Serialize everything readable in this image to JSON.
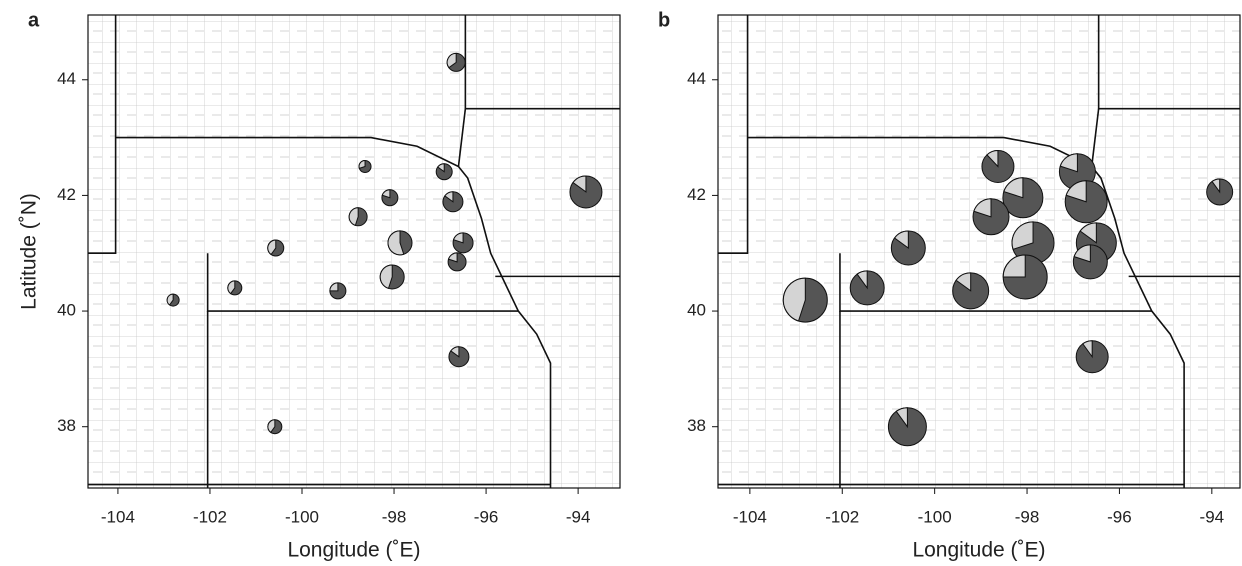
{
  "chart_data": [
    {
      "type": "pie-map",
      "panel_label": "a",
      "xlabel": "Longitude (˚E)",
      "ylabel": "Latitude (˚N)",
      "xlim": [
        -104.65,
        -93.09
      ],
      "ylim": [
        36.94,
        45.12
      ],
      "xticks": [
        -104,
        -102,
        -100,
        -98,
        -96,
        -94
      ],
      "yticks": [
        38,
        40,
        42,
        44
      ],
      "lon": [
        -96.65,
        -93.83,
        -98.63,
        -96.91,
        -98.09,
        -96.72,
        -98.78,
        -96.5,
        -97.87,
        -100.57,
        -96.63,
        -98.04,
        -101.46,
        -99.22,
        -102.8,
        -96.59,
        -100.59
      ],
      "lat": [
        44.3,
        42.06,
        42.5,
        42.41,
        41.96,
        41.89,
        41.63,
        41.18,
        41.18,
        41.09,
        40.85,
        40.59,
        40.4,
        40.35,
        40.19,
        39.21,
        38.0
      ],
      "size": [
        9,
        16,
        6,
        8,
        8,
        10,
        9,
        10,
        12,
        8,
        9,
        12,
        7,
        8,
        6,
        10,
        7
      ],
      "light": [
        35,
        15,
        30,
        15,
        20,
        15,
        45,
        20,
        55,
        40,
        20,
        45,
        40,
        25,
        40,
        15,
        40
      ]
    },
    {
      "type": "pie-map",
      "panel_label": "b",
      "xlabel": "Longitude (˚E)",
      "xlim": [
        -104.69,
        -93.39
      ],
      "ylim": [
        36.94,
        45.12
      ],
      "xticks": [
        -104,
        -102,
        -100,
        -98,
        -96,
        -94
      ],
      "yticks": [
        38,
        40,
        42,
        44
      ],
      "lon": [
        -93.83,
        -98.63,
        -96.91,
        -98.09,
        -96.72,
        -98.78,
        -96.5,
        -97.87,
        -100.57,
        -96.63,
        -98.04,
        -101.46,
        -99.22,
        -102.8,
        -96.59,
        -100.59
      ],
      "lat": [
        42.06,
        42.5,
        42.41,
        41.96,
        41.89,
        41.63,
        41.18,
        41.18,
        41.09,
        40.85,
        40.59,
        40.4,
        40.35,
        40.19,
        39.21,
        38.0
      ],
      "size": [
        13,
        16,
        18,
        20,
        21,
        18,
        20,
        21,
        17,
        17,
        22,
        17,
        18,
        22,
        16,
        19
      ],
      "light": [
        10,
        12,
        20,
        20,
        20,
        20,
        15,
        30,
        15,
        20,
        25,
        10,
        15,
        45,
        10,
        10
      ]
    }
  ]
}
